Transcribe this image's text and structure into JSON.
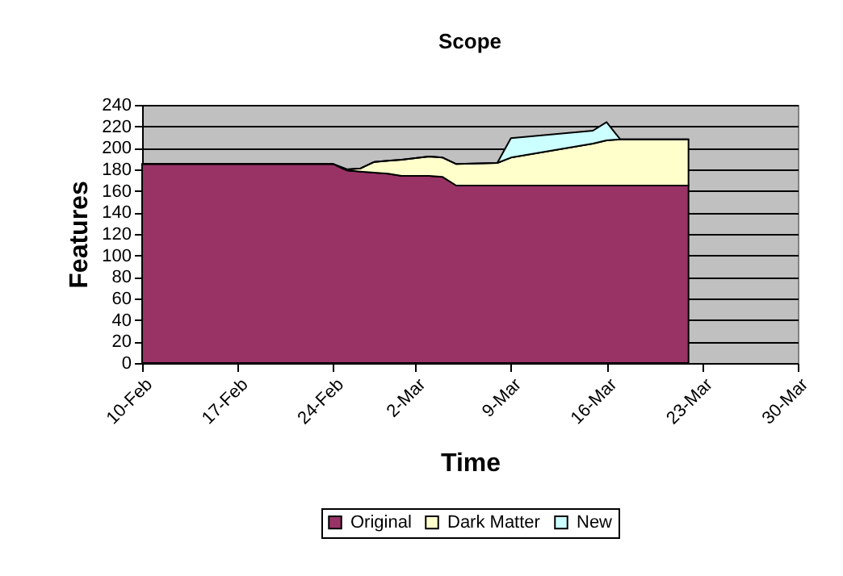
{
  "chart_data": {
    "type": "area",
    "stacked": true,
    "title": "Scope",
    "xlabel": "Time",
    "ylabel": "Features",
    "x": [
      "--02-10",
      "--02-24",
      "--02-25",
      "--02-26",
      "--02-27",
      "--02-28",
      "--03-01",
      "--03-03",
      "--03-04",
      "--03-05",
      "--03-08",
      "--03-09",
      "--03-15",
      "--03-16",
      "--03-17",
      "--03-22"
    ],
    "series": [
      {
        "name": "Original",
        "color": "#993366",
        "values": [
          185,
          185,
          179,
          178,
          177,
          176,
          174,
          174,
          173,
          165,
          165,
          165,
          165,
          165,
          165,
          165
        ]
      },
      {
        "name": "Dark Matter",
        "color": "#ffffcc",
        "values": [
          0,
          0,
          1,
          3,
          10,
          12,
          15,
          18,
          18,
          20,
          21,
          26,
          39,
          42,
          43,
          43
        ]
      },
      {
        "name": "New",
        "color": "#ccffff",
        "values": [
          0,
          0,
          0,
          0,
          0,
          0,
          0,
          0,
          0,
          0,
          0,
          18,
          12,
          17,
          0,
          0
        ]
      }
    ],
    "xlim": [
      "--02-10",
      "--03-30"
    ],
    "xticks": [
      {
        "value": "--02-10",
        "label": "10-Feb"
      },
      {
        "value": "--02-17",
        "label": "17-Feb"
      },
      {
        "value": "--02-24",
        "label": "24-Feb"
      },
      {
        "value": "--03-02",
        "label": "2-Mar"
      },
      {
        "value": "--03-09",
        "label": "9-Mar"
      },
      {
        "value": "--03-16",
        "label": "16-Mar"
      },
      {
        "value": "--03-23",
        "label": "23-Mar"
      },
      {
        "value": "--03-30",
        "label": "30-Mar"
      }
    ],
    "ylim": [
      0,
      240
    ],
    "yticks": [
      0,
      20,
      40,
      60,
      80,
      100,
      120,
      140,
      160,
      180,
      200,
      220,
      240
    ],
    "grid": "y",
    "legend": "bottom"
  }
}
